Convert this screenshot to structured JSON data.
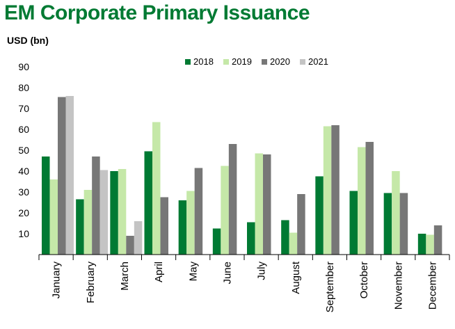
{
  "chart_data": {
    "type": "bar",
    "title": "EM Corporate Primary Issuance",
    "ylabel": "USD (bn)",
    "xlabel": "",
    "ylim": [
      0,
      90
    ],
    "yticks": [
      10,
      20,
      30,
      40,
      50,
      60,
      70,
      80,
      90
    ],
    "grid": false,
    "legend_position": "top-center",
    "categories": [
      "January",
      "February",
      "March",
      "April",
      "May",
      "June",
      "July",
      "August",
      "September",
      "October",
      "November",
      "December"
    ],
    "series": [
      {
        "name": "2018",
        "color": "#007a33",
        "values": [
          47,
          26.5,
          40,
          49.5,
          26,
          12.5,
          15.5,
          16.5,
          37.5,
          30.5,
          29.5,
          10
        ]
      },
      {
        "name": "2019",
        "color": "#c5e8a8",
        "values": [
          36,
          31,
          41,
          63.5,
          30.5,
          42.5,
          48.5,
          10.5,
          61.5,
          51.5,
          40,
          9.5
        ]
      },
      {
        "name": "2020",
        "color": "#777777",
        "values": [
          75.5,
          47,
          9,
          27.5,
          41.5,
          53,
          48,
          29,
          62,
          54,
          29.5,
          14
        ]
      },
      {
        "name": "2021",
        "color": "#c4c4c4",
        "values": [
          76,
          40.5,
          16,
          null,
          null,
          null,
          null,
          null,
          null,
          null,
          null,
          null
        ]
      }
    ]
  }
}
